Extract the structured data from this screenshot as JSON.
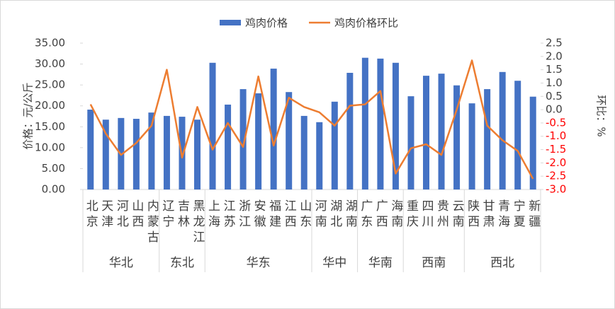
{
  "chart_data": {
    "type": "bar_line",
    "groups": [
      {
        "name": "华北",
        "categories": [
          "北京",
          "天津",
          "河北",
          "山西",
          "内蒙古"
        ]
      },
      {
        "name": "东北",
        "categories": [
          "辽宁",
          "吉林",
          "黑龙江"
        ]
      },
      {
        "name": "华东",
        "categories": [
          "上海",
          "江苏",
          "浙江",
          "安徽",
          "福建",
          "江西",
          "山东"
        ]
      },
      {
        "name": "华中",
        "categories": [
          "河南",
          "湖北",
          "湖南"
        ]
      },
      {
        "name": "华南",
        "categories": [
          "广东",
          "广西",
          "海南"
        ]
      },
      {
        "name": "西南",
        "categories": [
          "重庆",
          "四川",
          "贵州",
          "云南"
        ]
      },
      {
        "name": "西北",
        "categories": [
          "陕西",
          "甘肃",
          "青海",
          "宁夏",
          "新疆"
        ]
      }
    ],
    "series": [
      {
        "name": "鸡肉价格",
        "type": "bar",
        "color": "#4472c4",
        "values": [
          19.1,
          16.7,
          17.1,
          16.9,
          18.4,
          17.6,
          17.4,
          16.7,
          30.3,
          20.3,
          24.0,
          23.0,
          28.9,
          23.3,
          17.6,
          16.1,
          21.0,
          27.9,
          31.5,
          31.3,
          30.3,
          22.3,
          27.2,
          27.7,
          24.9,
          20.6,
          24.0,
          28.1,
          26.0,
          22.2
        ]
      },
      {
        "name": "鸡肉价格环比",
        "type": "line",
        "axis": "y2",
        "color": "#ed7d31",
        "values": [
          0.2,
          -0.9,
          -1.7,
          -1.25,
          -0.6,
          1.5,
          -1.8,
          0.1,
          -1.5,
          -0.5,
          -1.4,
          1.25,
          -1.35,
          0.45,
          0.1,
          -0.1,
          -0.6,
          0.15,
          0.2,
          0.7,
          -2.4,
          -1.45,
          -1.3,
          -1.7,
          0.0,
          1.85,
          -0.6,
          -1.15,
          -1.55,
          -2.6
        ]
      }
    ],
    "ylabel": "价格：元/公斤",
    "y2label": "环比：%",
    "ylim": [
      0,
      35
    ],
    "yticks": [
      {
        "value": 0,
        "label": "0.00"
      },
      {
        "value": 5,
        "label": "5.00"
      },
      {
        "value": 10,
        "label": "10.00"
      },
      {
        "value": 15,
        "label": "15.00"
      },
      {
        "value": 20,
        "label": "20.00"
      },
      {
        "value": 25,
        "label": "25.00"
      },
      {
        "value": 30,
        "label": "30.00"
      },
      {
        "value": 35,
        "label": "35.00"
      }
    ],
    "y2lim": [
      -3,
      2.5
    ],
    "y2ticks": [
      2.5,
      {
        "value": 2,
        "label": "2.0"
      },
      1.5,
      {
        "value": 1,
        "label": "1.0"
      },
      0.5,
      {
        "value": 0,
        "label": "0.0"
      },
      -0.5,
      {
        "value": -1,
        "label": "-1.0"
      },
      -1.5,
      {
        "value": -2,
        "label": "-2.0"
      },
      -2.5,
      {
        "value": -3,
        "label": "-3.0"
      }
    ],
    "y2_negative_tick_color": "#ff0000",
    "legend": "top"
  }
}
